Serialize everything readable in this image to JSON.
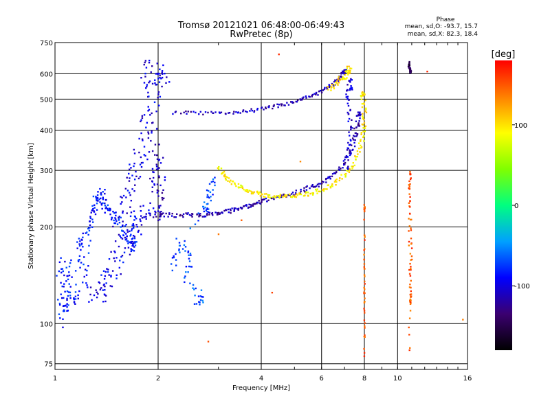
{
  "chart_data": {
    "type": "scatter",
    "title": "Tromsø 20121021 06:48:00-06:49:43",
    "subtitle": "RwPretec (8p)",
    "xlabel": "Frequency [MHz]",
    "ylabel": "Stationary phase Virtual Height [km]",
    "x_scale": "log",
    "y_scale": "log",
    "xlim": [
      1,
      16
    ],
    "ylim": [
      72,
      750
    ],
    "x_ticks": [
      1,
      2,
      4,
      6,
      8,
      10,
      16
    ],
    "x_tick_labels": [
      "1",
      "2",
      "4",
      "6",
      "8",
      "10",
      "16"
    ],
    "y_ticks": [
      75,
      100,
      200,
      300,
      400,
      500,
      600,
      750
    ],
    "y_tick_labels": [
      "75",
      "100",
      "200",
      "300",
      "400",
      "500",
      "600",
      "750"
    ],
    "grid": true,
    "stats": {
      "heading": "Phase",
      "o_line": "mean, sd,O: -93.7, 15.7",
      "x_line": "mean, sd,X:  82.3, 18.4"
    },
    "colorbar": {
      "label": "[deg]",
      "range": [
        -180,
        180
      ],
      "ticks": [
        100,
        0,
        -100
      ],
      "tick_labels": [
        "100",
        "0",
        "-100"
      ],
      "colors": [
        "#000000",
        "#3b0070",
        "#0000ff",
        "#00a0ff",
        "#00ff80",
        "#80ff00",
        "#ffff00",
        "#ff8000",
        "#ff0000"
      ]
    },
    "series": [
      {
        "points": [
          [
            1.02,
            148
          ],
          [
            1.04,
            100
          ],
          [
            1.05,
            165
          ],
          [
            1.07,
            108
          ],
          [
            1.08,
            112
          ],
          [
            1.1,
            160
          ],
          [
            1.12,
            118
          ],
          [
            1.15,
            122
          ],
          [
            1.17,
            175
          ],
          [
            1.2,
            185
          ],
          [
            1.22,
            128
          ],
          [
            1.25,
            195
          ],
          [
            1.28,
            210
          ],
          [
            1.3,
            230
          ],
          [
            1.32,
            250
          ],
          [
            1.35,
            240
          ],
          [
            1.38,
            255
          ],
          [
            1.4,
            230
          ],
          [
            1.45,
            220
          ],
          [
            1.5,
            215
          ],
          [
            1.55,
            200
          ],
          [
            1.6,
            190
          ],
          [
            1.65,
            180
          ],
          [
            1.7,
            175
          ]
        ],
        "phase": -85,
        "jitter": [
          0.02,
          0.04
        ]
      },
      {
        "points": [
          [
            1.3,
            120
          ],
          [
            1.35,
            125
          ],
          [
            1.4,
            132
          ],
          [
            1.45,
            140
          ],
          [
            1.5,
            150
          ],
          [
            1.55,
            165
          ],
          [
            1.6,
            178
          ],
          [
            1.65,
            190
          ],
          [
            1.7,
            200
          ],
          [
            1.75,
            210
          ],
          [
            1.8,
            222
          ]
        ],
        "phase": -95,
        "jitter": [
          0.06,
          0.06
        ]
      },
      {
        "points": [
          [
            1.55,
            200
          ],
          [
            1.6,
            230
          ],
          [
            1.65,
            260
          ],
          [
            1.7,
            290
          ],
          [
            1.75,
            320
          ],
          [
            1.8,
            360
          ],
          [
            1.85,
            400
          ],
          [
            1.9,
            440
          ],
          [
            1.95,
            500
          ],
          [
            1.85,
            560
          ],
          [
            1.9,
            620
          ],
          [
            2.0,
            600
          ],
          [
            2.05,
            560
          ]
        ],
        "phase": -100,
        "jitter": [
          0.05,
          0.08
        ]
      },
      {
        "points": [
          [
            1.9,
            250
          ],
          [
            1.95,
            300
          ],
          [
            2.0,
            350
          ],
          [
            2.05,
            280
          ],
          [
            2.02,
            240
          ],
          [
            1.98,
            220
          ]
        ],
        "phase": -110,
        "jitter": [
          0.03,
          0.06
        ]
      },
      {
        "points": [
          [
            2.0,
            218
          ],
          [
            2.2,
            218
          ],
          [
            2.4,
            218
          ],
          [
            2.6,
            218
          ],
          [
            2.8,
            219
          ],
          [
            3.0,
            221
          ],
          [
            3.2,
            224
          ],
          [
            3.4,
            228
          ],
          [
            3.6,
            232
          ],
          [
            3.8,
            236
          ],
          [
            4.0,
            240
          ],
          [
            4.3,
            245
          ],
          [
            4.6,
            250
          ],
          [
            5.0,
            256
          ],
          [
            5.4,
            262
          ],
          [
            5.8,
            270
          ],
          [
            6.2,
            280
          ],
          [
            6.6,
            295
          ],
          [
            7.0,
            315
          ],
          [
            7.3,
            345
          ],
          [
            7.5,
            380
          ],
          [
            7.6,
            410
          ],
          [
            7.7,
            450
          ]
        ],
        "phase": -115,
        "jitter": [
          0.015,
          0.015
        ]
      },
      {
        "points": [
          [
            2.2,
            455
          ],
          [
            2.6,
            452
          ],
          [
            3.0,
            452
          ],
          [
            3.4,
            456
          ],
          [
            3.8,
            462
          ],
          [
            4.2,
            470
          ],
          [
            4.6,
            480
          ],
          [
            5.0,
            490
          ],
          [
            5.4,
            505
          ],
          [
            5.8,
            520
          ],
          [
            6.2,
            540
          ],
          [
            6.5,
            560
          ],
          [
            6.8,
            585
          ],
          [
            7.0,
            610
          ]
        ],
        "phase": -112,
        "jitter": [
          0.012,
          0.012
        ]
      },
      {
        "points": [
          [
            3.0,
            305
          ],
          [
            3.1,
            290
          ],
          [
            3.2,
            280
          ],
          [
            3.4,
            270
          ],
          [
            3.6,
            262
          ],
          [
            3.8,
            256
          ],
          [
            4.0,
            252
          ],
          [
            4.3,
            250
          ],
          [
            4.6,
            249
          ],
          [
            5.0,
            250
          ],
          [
            5.4,
            253
          ],
          [
            5.8,
            258
          ],
          [
            6.2,
            265
          ],
          [
            6.6,
            275
          ],
          [
            7.0,
            290
          ],
          [
            7.4,
            310
          ],
          [
            7.7,
            340
          ],
          [
            7.9,
            380
          ],
          [
            8.0,
            420
          ],
          [
            8.0,
            470
          ],
          [
            7.9,
            520
          ]
        ],
        "phase": 95,
        "jitter": [
          0.015,
          0.015
        ]
      },
      {
        "points": [
          [
            6.3,
            540
          ],
          [
            6.6,
            560
          ],
          [
            6.9,
            580
          ],
          [
            7.1,
            600
          ],
          [
            7.2,
            620
          ]
        ],
        "phase": 100,
        "jitter": [
          0.02,
          0.02
        ]
      },
      {
        "points": [
          [
            7.1,
            300
          ],
          [
            7.2,
            350
          ],
          [
            7.3,
            400
          ],
          [
            7.2,
            460
          ],
          [
            7.1,
            520
          ],
          [
            7.3,
            560
          ]
        ],
        "phase": -105,
        "jitter": [
          0.01,
          0.05
        ]
      },
      {
        "points": [
          [
            2.6,
            118
          ],
          [
            2.7,
            120
          ],
          [
            2.4,
            140
          ],
          [
            2.5,
            160
          ],
          [
            2.3,
            180
          ],
          [
            2.2,
            150
          ],
          [
            2.8,
            250
          ],
          [
            2.9,
            280
          ],
          [
            2.75,
            230
          ]
        ],
        "phase": -70,
        "jitter": [
          0.02,
          0.03
        ]
      },
      {
        "points": [
          [
            10.8,
            650
          ],
          [
            10.8,
            630
          ],
          [
            10.9,
            610
          ]
        ],
        "phase": -150,
        "jitter": [
          0.005,
          0.01
        ]
      },
      {
        "points": [
          [
            10.8,
            82
          ],
          [
            10.9,
            140
          ],
          [
            11.0,
            180
          ],
          [
            10.8,
            260
          ],
          [
            10.9,
            300
          ],
          [
            10.8,
            200
          ],
          [
            10.9,
            120
          ]
        ],
        "phase": 150,
        "jitter": [
          0.005,
          0.03
        ]
      },
      {
        "points": [
          [
            8.0,
            190
          ],
          [
            8.0,
            140
          ],
          [
            8.0,
            115
          ],
          [
            8.0,
            80
          ],
          [
            8.0,
            230
          ]
        ],
        "phase": 150,
        "jitter": [
          0.003,
          0.03
        ]
      },
      {
        "points": [
          [
            3.0,
            190
          ],
          [
            3.5,
            210
          ],
          [
            5.0,
            250
          ],
          [
            4.3,
            125
          ],
          [
            5.2,
            320
          ],
          [
            2.8,
            88
          ],
          [
            4.5,
            690
          ],
          [
            15.5,
            103
          ],
          [
            12.2,
            610
          ]
        ],
        "phase": 150,
        "jitter": [
          0.0,
          0.0
        ]
      }
    ]
  }
}
